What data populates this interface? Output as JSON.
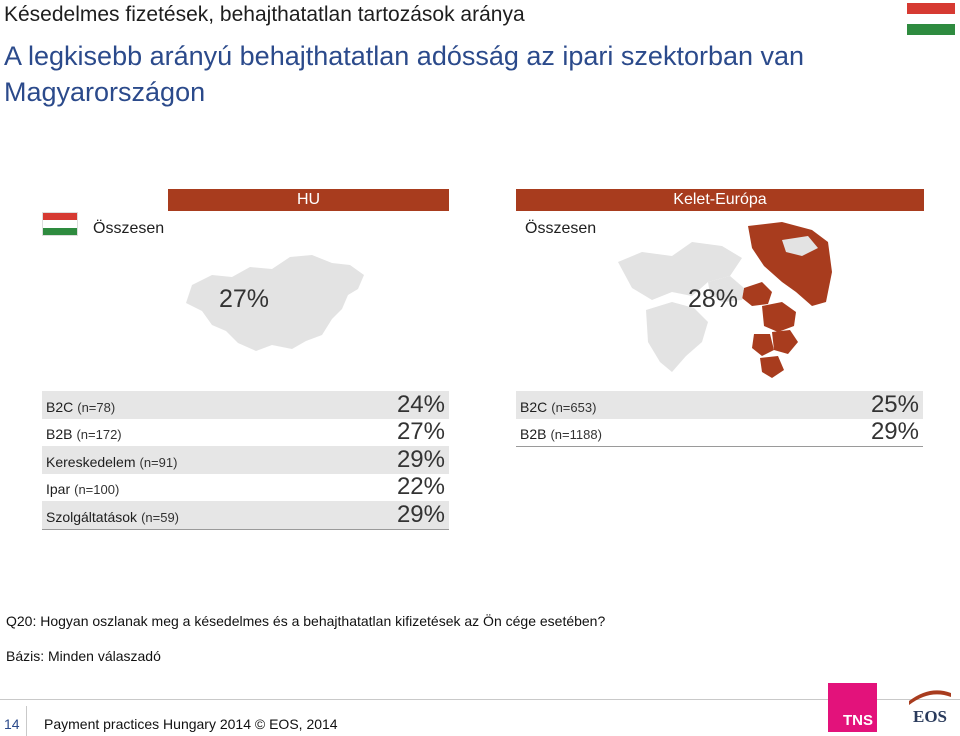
{
  "header": {
    "suptitle": "Késedelmes fizetések, behajthatatlan tartozások aránya",
    "title": "A legkisebb arányú behajthatatlan adósság az ipari szektorban van Magyarországon"
  },
  "hu": {
    "header": "HU",
    "total_label": "Összesen",
    "total_value": "27%",
    "rows": [
      {
        "label": "B2C",
        "n": "(n=78)",
        "value": "24%"
      },
      {
        "label": "B2B",
        "n": "(n=172)",
        "value": "27%"
      },
      {
        "label": "Kereskedelem",
        "n": "(n=91)",
        "value": "29%"
      },
      {
        "label": "Ipar",
        "n": "(n=100)",
        "value": "22%"
      },
      {
        "label": "Szolgáltatások",
        "n": "(n=59)",
        "value": "29%"
      }
    ]
  },
  "ke": {
    "header": "Kelet-Európa",
    "total_label": "Összesen",
    "total_value": "28%",
    "rows": [
      {
        "label": "B2C",
        "n": "(n=653)",
        "value": "25%"
      },
      {
        "label": "B2B",
        "n": "(n=1188)",
        "value": "29%"
      }
    ]
  },
  "notes": {
    "question": "Q20: Hogyan oszlanak meg a késedelmes és a behajthatatlan kifizetések az Ön cége esetében?",
    "base": "Bázis: Minden válaszadó"
  },
  "footer": {
    "page_number": "14",
    "text": "Payment practices Hungary 2014 © EOS, 2014"
  },
  "logos": {
    "tns": "TNS",
    "eos": "EOS"
  },
  "colors": {
    "header_bar": "#a83c1e",
    "title": "#2b4a8b",
    "tns": "#e3127b",
    "map_highlight": "#a83c1e",
    "map_grey": "#e3e3e3"
  },
  "icons": {
    "flag": "hungary-flag-icon",
    "hu_map": "hungary-map-icon",
    "eu_map": "eastern-europe-map-icon"
  }
}
